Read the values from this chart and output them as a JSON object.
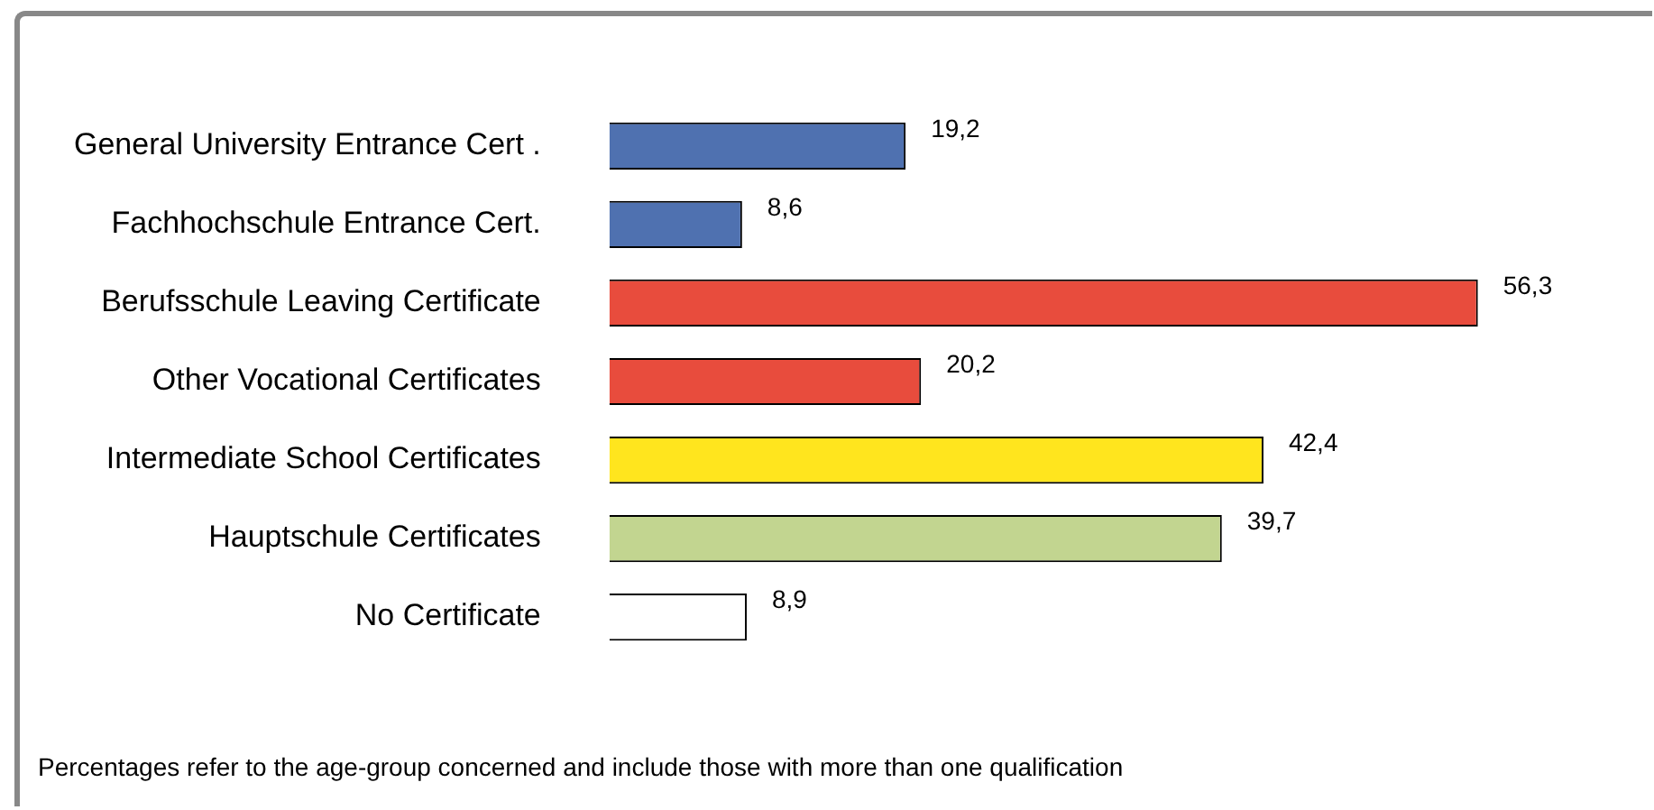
{
  "chart_data": {
    "type": "bar",
    "orientation": "horizontal",
    "categories": [
      "General University Entrance Cert .",
      "Fachhochschule Entrance Cert.",
      "Berufsschule Leaving Certificate",
      "Other Vocational Certificates",
      "Intermediate School Certificates",
      "Hauptschule Certificates",
      "No Certificate"
    ],
    "values": [
      19.2,
      8.6,
      56.3,
      20.2,
      42.4,
      39.7,
      8.9
    ],
    "value_labels": [
      "19,2",
      "8,6",
      "56,3",
      "20,2",
      "42,4",
      "39,7",
      "8,9"
    ],
    "colors": [
      "#4f71b0",
      "#4f71b0",
      "#e84c3d",
      "#e84c3d",
      "#ffe51e",
      "#c2d590",
      "#ffffff"
    ],
    "grid": false,
    "legend": false,
    "annotations": [
      "Percentages refer to the age-group concerned and include those with more than one qualification"
    ]
  }
}
